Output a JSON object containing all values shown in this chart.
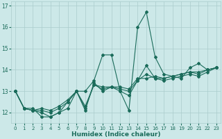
{
  "xlabel": "Humidex (Indice chaleur)",
  "ylabel": "",
  "background_color": "#cce8e8",
  "grid_color": "#aacccc",
  "line_color": "#1a6b5a",
  "xlim": [
    -0.5,
    23.5
  ],
  "ylim": [
    11.5,
    17.2
  ],
  "yticks": [
    12,
    13,
    14,
    15,
    16,
    17
  ],
  "xticks": [
    0,
    1,
    2,
    3,
    4,
    5,
    6,
    7,
    8,
    9,
    10,
    11,
    12,
    13,
    14,
    15,
    16,
    17,
    18,
    19,
    20,
    21,
    22,
    23
  ],
  "series": [
    [
      13.0,
      12.2,
      12.2,
      11.8,
      11.8,
      12.0,
      12.2,
      13.0,
      13.0,
      13.5,
      14.7,
      14.7,
      13.0,
      12.1,
      16.0,
      16.7,
      14.6,
      13.8,
      13.7,
      13.6,
      14.1,
      14.3,
      14.0,
      14.1
    ],
    [
      13.0,
      12.2,
      12.1,
      12.0,
      11.8,
      12.0,
      12.5,
      13.0,
      12.1,
      13.4,
      13.0,
      13.2,
      13.0,
      12.8,
      13.5,
      14.2,
      13.6,
      13.5,
      13.6,
      13.7,
      13.8,
      13.7,
      13.9,
      14.1
    ],
    [
      13.0,
      12.2,
      12.1,
      12.1,
      12.0,
      12.2,
      12.5,
      13.0,
      12.2,
      13.3,
      13.1,
      13.2,
      13.1,
      13.0,
      13.5,
      13.8,
      13.6,
      13.6,
      13.7,
      13.8,
      13.9,
      13.8,
      14.0,
      14.1
    ],
    [
      13.0,
      12.2,
      12.1,
      12.2,
      12.1,
      12.3,
      12.6,
      13.0,
      12.3,
      13.3,
      13.2,
      13.2,
      13.2,
      13.1,
      13.6,
      13.6,
      13.7,
      13.6,
      13.7,
      13.8,
      13.9,
      13.9,
      14.0,
      14.1
    ]
  ],
  "xtick_fontsize": 5.0,
  "ytick_fontsize": 5.5,
  "xlabel_fontsize": 6.5,
  "linewidth": 0.8,
  "markersize": 2.0
}
